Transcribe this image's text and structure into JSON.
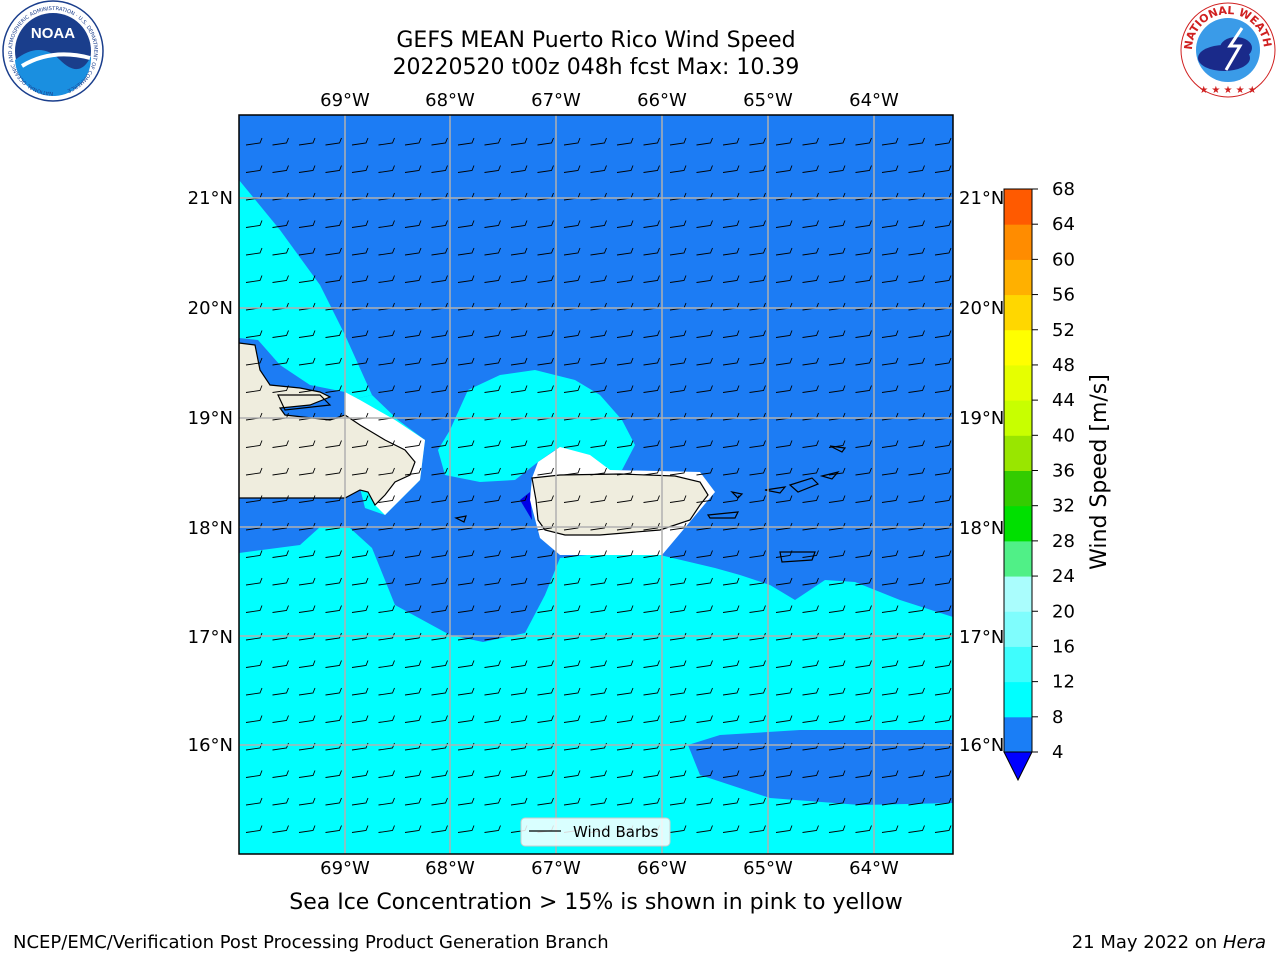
{
  "header": {
    "title_line1": "GEFS MEAN Puerto Rico Wind Speed",
    "title_line2": "20220520 t00z 048h fcst   Max: 10.39"
  },
  "map": {
    "lon_labels": [
      "69°W",
      "68°W",
      "67°W",
      "66°W",
      "65°W",
      "64°W"
    ],
    "lat_labels": [
      "21°N",
      "20°N",
      "19°N",
      "18°N",
      "17°N",
      "16°N"
    ],
    "legend_label": "Wind Barbs",
    "colors": {
      "land": "#efedde",
      "band_4_8": "#1c7cf4",
      "band_8_12": "#00ffff",
      "band_lt4": "#0000e6",
      "grid": "#b0b0b0"
    }
  },
  "colorbar": {
    "label": "Wind Speed [m/s]",
    "ticks": [
      "4",
      "8",
      "12",
      "16",
      "20",
      "24",
      "28",
      "32",
      "36",
      "40",
      "44",
      "48",
      "52",
      "56",
      "60",
      "64",
      "68"
    ],
    "colors": [
      "#1a7ef6",
      "#00ffff",
      "#3ffdfd",
      "#7ffdfd",
      "#aafdfd",
      "#50f087",
      "#00e000",
      "#33cc00",
      "#99e600",
      "#c8ff00",
      "#e6ff00",
      "#ffff00",
      "#ffd700",
      "#ffb000",
      "#ff8c00",
      "#ff5a00",
      "#ff2a00",
      "#ff0000"
    ],
    "under_color": "#0000ff"
  },
  "caption": "Sea Ice Concentration > 15% is shown in pink to yellow",
  "footer": {
    "left": "NCEP/EMC/Verification Post Processing Product Generation Branch",
    "right_date": "21 May 2022 on ",
    "right_host": "Hera"
  },
  "logos": {
    "noaa_text": "NOAA",
    "noaa_ring": "NATIONAL OCEANIC AND ATMOSPHERIC ADMINISTRATION · U.S. DEPARTMENT OF COMMERCE",
    "nws_ring": "NATIONAL WEATHER SERVICE"
  }
}
